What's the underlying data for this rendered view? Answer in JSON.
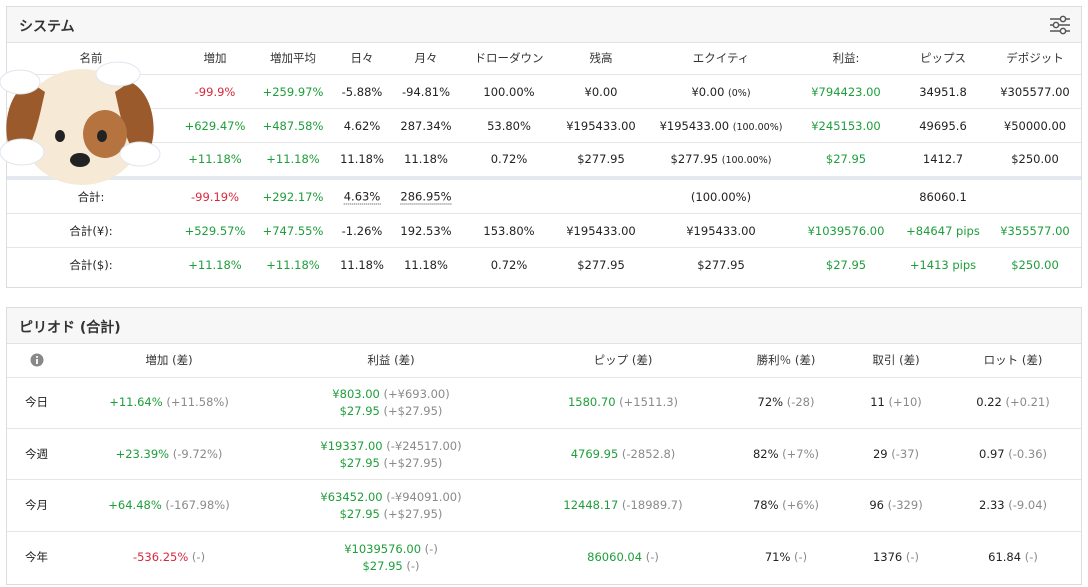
{
  "system": {
    "title": "システム",
    "headers": [
      "名前",
      "増加",
      "増加平均",
      "日々",
      "月々",
      "ドローダウン",
      "残高",
      "エクイティ",
      "利益:",
      "ピップス",
      "デポジット"
    ],
    "rows": [
      [
        null,
        "-99.9%",
        "+259.97%",
        "-5.88%",
        "-94.81%",
        "100.00%",
        "¥0.00",
        "¥0.00",
        "¥794423.00",
        "34951.8",
        "¥305577.00"
      ],
      [
        null,
        "+629.47%",
        "+487.58%",
        "4.62%",
        "287.34%",
        "53.80%",
        "¥195433.00",
        "¥195433.00",
        "¥245153.00",
        "49695.6",
        "¥50000.00"
      ],
      [
        null,
        "+11.18%",
        "+11.18%",
        "11.18%",
        "11.18%",
        "0.72%",
        "$277.95",
        "$277.95",
        "$27.95",
        "1412.7",
        "$250.00"
      ],
      [
        "合計:",
        "-99.19%",
        "+292.17%",
        "4.63%",
        "286.95%",
        null,
        null,
        "(100.00%)",
        null,
        "86060.1",
        null
      ],
      [
        "合計(¥):",
        "+529.57%",
        "+747.55%",
        "-1.26%",
        "192.53%",
        "153.80%",
        "¥195433.00",
        "¥195433.00",
        "¥1039576.00",
        "+84647 pips",
        "¥355577.00"
      ],
      [
        "合計($):",
        "+11.18%",
        "+11.18%",
        "11.18%",
        "11.18%",
        "0.72%",
        "$277.95",
        "$277.95",
        "$27.95",
        "+1413 pips",
        "$250.00"
      ]
    ],
    "equity_notes": [
      "(0%)",
      "(100.00%)",
      "(100.00%)"
    ]
  },
  "period": {
    "title": "ピリオド (合計)",
    "headers": [
      "増加 (差)",
      "利益 (差)",
      "ピップ (差)",
      "勝利％ (差)",
      "取引 (差)",
      "ロット (差)"
    ],
    "rows": [
      {
        "label": "今日",
        "gain": [
          "+11.64%",
          "(+11.58%)"
        ],
        "profit": [
          [
            "¥803.00",
            "(+¥693.00)"
          ],
          [
            "$27.95",
            "(+$27.95)"
          ]
        ],
        "pips": [
          "1580.70",
          "(+1511.3)"
        ],
        "win": [
          "72%",
          "(-28)"
        ],
        "trades": [
          "11",
          "(+10)"
        ],
        "lots": [
          "0.22",
          "(+0.21)"
        ]
      },
      {
        "label": "今週",
        "gain": [
          "+23.39%",
          "(-9.72%)"
        ],
        "profit": [
          [
            "¥19337.00",
            "(-¥24517.00)"
          ],
          [
            "$27.95",
            "(+$27.95)"
          ]
        ],
        "pips": [
          "4769.95",
          "(-2852.8)"
        ],
        "win": [
          "82%",
          "(+7%)"
        ],
        "trades": [
          "29",
          "(-37)"
        ],
        "lots": [
          "0.97",
          "(-0.36)"
        ]
      },
      {
        "label": "今月",
        "gain": [
          "+64.48%",
          "(-167.98%)"
        ],
        "profit": [
          [
            "¥63452.00",
            "(-¥94091.00)"
          ],
          [
            "$27.95",
            "(+$27.95)"
          ]
        ],
        "pips": [
          "12448.17",
          "(-18989.7)"
        ],
        "win": [
          "78%",
          "(+6%)"
        ],
        "trades": [
          "96",
          "(-329)"
        ],
        "lots": [
          "2.33",
          "(-9.04)"
        ]
      },
      {
        "label": "今年",
        "gain": [
          "-536.25%",
          "(-)"
        ],
        "profit": [
          [
            "¥1039576.00",
            "(-)"
          ],
          [
            "$27.95",
            "(-)"
          ]
        ],
        "pips": [
          "86060.04",
          "(-)"
        ],
        "win": [
          "71%",
          "(-)"
        ],
        "trades": [
          "1376",
          "(-)"
        ],
        "lots": [
          "61.84",
          "(-)"
        ]
      }
    ]
  }
}
